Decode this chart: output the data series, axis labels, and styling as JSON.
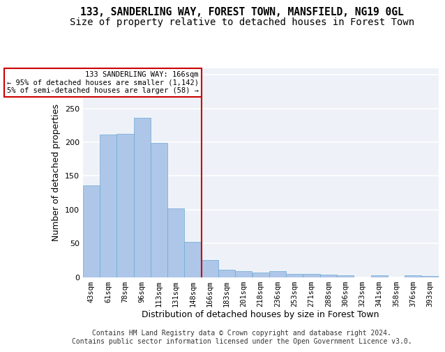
{
  "title_line1": "133, SANDERLING WAY, FOREST TOWN, MANSFIELD, NG19 0GL",
  "title_line2": "Size of property relative to detached houses in Forest Town",
  "xlabel": "Distribution of detached houses by size in Forest Town",
  "ylabel": "Number of detached properties",
  "categories": [
    "43sqm",
    "61sqm",
    "78sqm",
    "96sqm",
    "113sqm",
    "131sqm",
    "148sqm",
    "166sqm",
    "183sqm",
    "201sqm",
    "218sqm",
    "236sqm",
    "253sqm",
    "271sqm",
    "288sqm",
    "306sqm",
    "323sqm",
    "341sqm",
    "358sqm",
    "376sqm",
    "393sqm"
  ],
  "values": [
    136,
    211,
    212,
    236,
    199,
    102,
    52,
    25,
    11,
    9,
    7,
    9,
    5,
    5,
    4,
    3,
    0,
    3,
    0,
    3,
    2
  ],
  "bar_color": "#aec6e8",
  "bar_edge_color": "#6aaad4",
  "vline_index": 7,
  "annotation_text": "133 SANDERLING WAY: 166sqm\n← 95% of detached houses are smaller (1,142)\n5% of semi-detached houses are larger (58) →",
  "annotation_box_color": "#ffffff",
  "annotation_box_edge_color": "#cc0000",
  "vline_color": "#cc0000",
  "ylim": [
    0,
    310
  ],
  "yticks": [
    0,
    50,
    100,
    150,
    200,
    250,
    300
  ],
  "footer_line1": "Contains HM Land Registry data © Crown copyright and database right 2024.",
  "footer_line2": "Contains public sector information licensed under the Open Government Licence v3.0.",
  "bg_color": "#eef2f8",
  "grid_color": "#ffffff",
  "title_fontsize": 10.5,
  "subtitle_fontsize": 10,
  "tick_fontsize": 7.5,
  "ylabel_fontsize": 9,
  "xlabel_fontsize": 9,
  "footer_fontsize": 7
}
